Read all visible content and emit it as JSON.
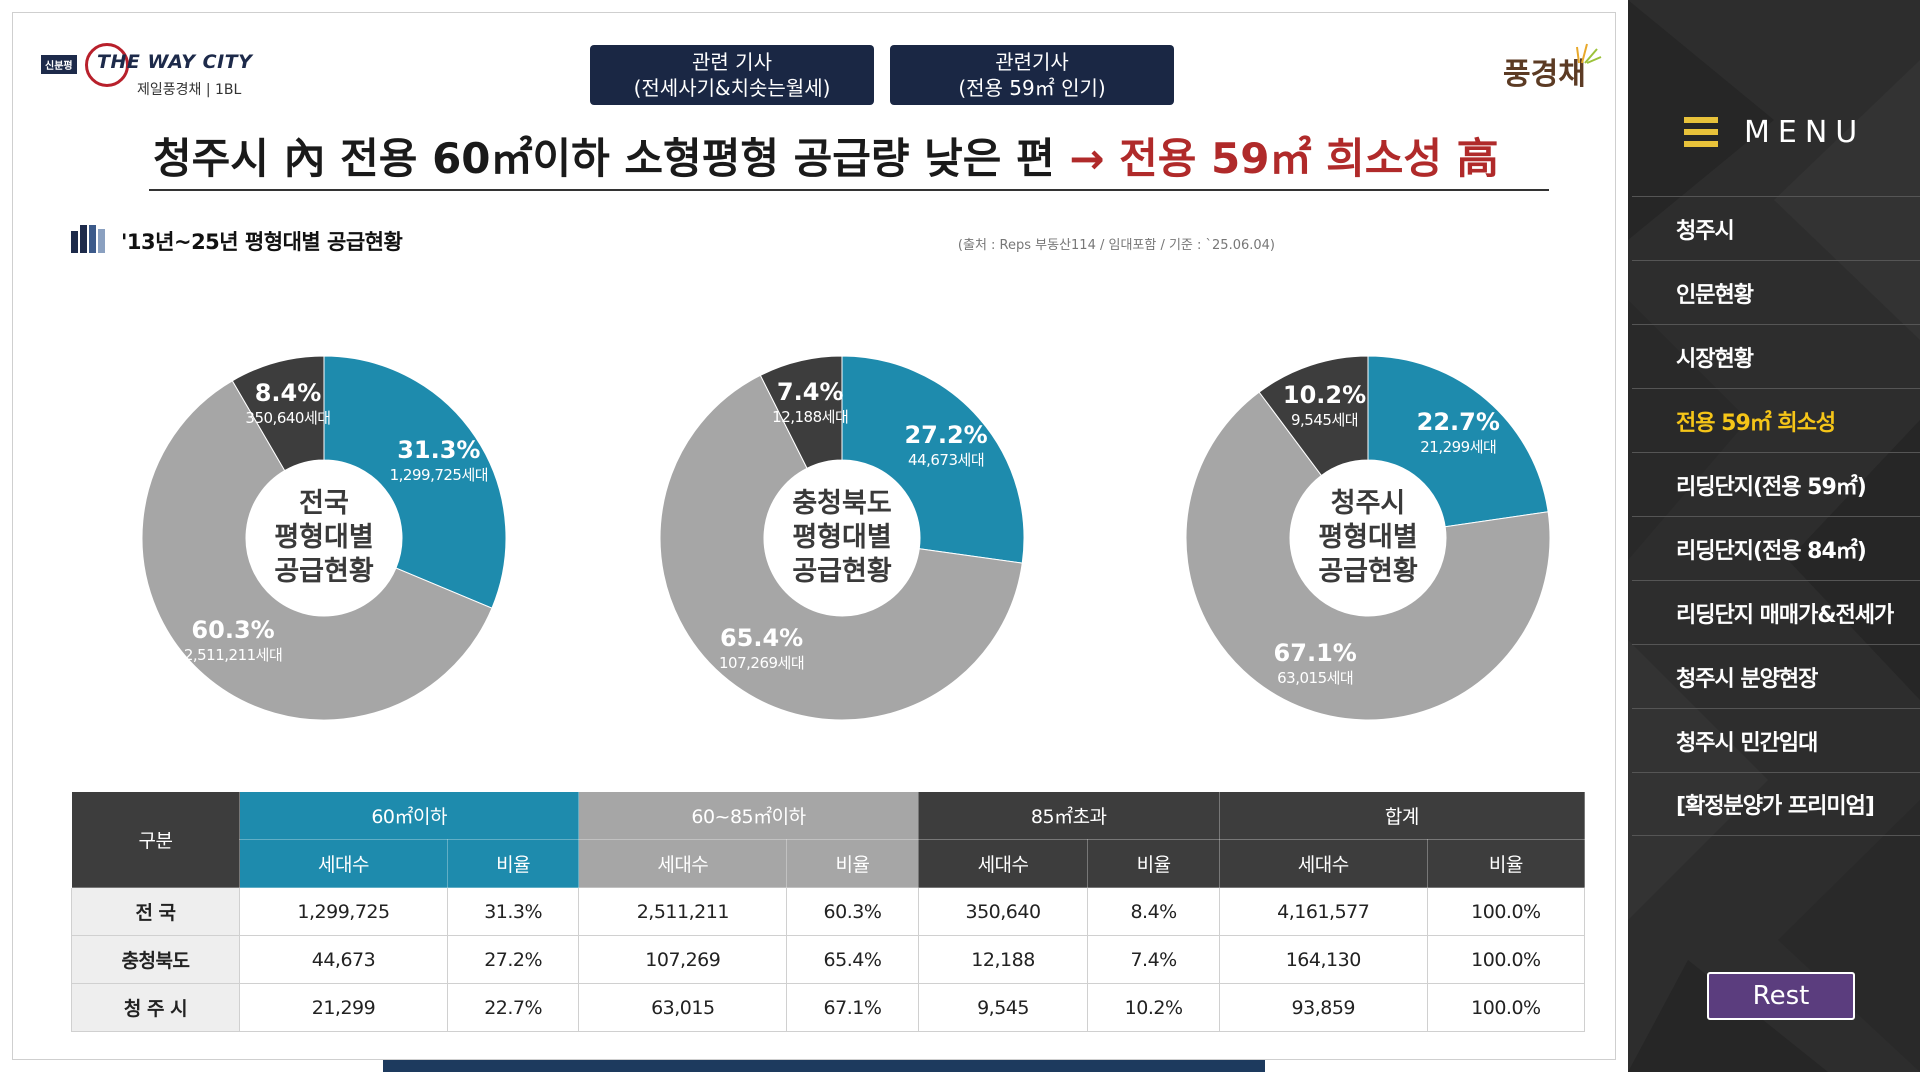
{
  "header": {
    "logo_badge": "신분평",
    "logo_text": "THE WAY CITY",
    "logo_sub": "제일풍경채 | 1BL",
    "brand": "풍경채",
    "buttons": [
      {
        "line1": "관련 기사",
        "line2": "(전세사기&치솟는월세)"
      },
      {
        "line1": "관련기사",
        "line2": "(전용 59㎡ 인기)"
      }
    ]
  },
  "headline": {
    "part1": "청주시 內 전용 60㎡이하 소형평형 공급량 낮은 편",
    "arrow": "→",
    "part2": "전용 59㎡ 희소성 高"
  },
  "section": {
    "title": "'13년~25년 평형대별 공급현황",
    "source": "(출처 : Reps 부동산114 / 임대포함 / 기준 : `25.06.04)"
  },
  "colors": {
    "blue": "#1e8bad",
    "gray": "#a6a6a6",
    "dark": "#3d3d3d",
    "accent_red": "#b02a2a",
    "menu_active": "#f5c518",
    "rest": "#5b3d7e"
  },
  "chart_data": [
    {
      "type": "pie",
      "title_lines": [
        "전국",
        "평형대별",
        "공급현황"
      ],
      "series": [
        {
          "name": "60㎡이하",
          "value": 31.3,
          "label": "31.3%",
          "count": "1,299,725세대",
          "color": "#1e8bad"
        },
        {
          "name": "60~85㎡이하",
          "value": 60.3,
          "label": "60.3%",
          "count": "2,511,211세대",
          "color": "#a6a6a6"
        },
        {
          "name": "85㎡초과",
          "value": 8.4,
          "label": "8.4%",
          "count": "350,640세대",
          "color": "#3d3d3d"
        }
      ]
    },
    {
      "type": "pie",
      "title_lines": [
        "충청북도",
        "평형대별",
        "공급현황"
      ],
      "series": [
        {
          "name": "60㎡이하",
          "value": 27.2,
          "label": "27.2%",
          "count": "44,673세대",
          "color": "#1e8bad"
        },
        {
          "name": "60~85㎡이하",
          "value": 65.4,
          "label": "65.4%",
          "count": "107,269세대",
          "color": "#a6a6a6"
        },
        {
          "name": "85㎡초과",
          "value": 7.4,
          "label": "7.4%",
          "count": "12,188세대",
          "color": "#3d3d3d"
        }
      ]
    },
    {
      "type": "pie",
      "title_lines": [
        "청주시",
        "평형대별",
        "공급현황"
      ],
      "series": [
        {
          "name": "60㎡이하",
          "value": 22.7,
          "label": "22.7%",
          "count": "21,299세대",
          "color": "#1e8bad"
        },
        {
          "name": "60~85㎡이하",
          "value": 67.1,
          "label": "67.1%",
          "count": "63,015세대",
          "color": "#a6a6a6"
        },
        {
          "name": "85㎡초과",
          "value": 10.2,
          "label": "10.2%",
          "count": "9,545세대",
          "color": "#3d3d3d"
        }
      ]
    }
  ],
  "table": {
    "gubun": "구분",
    "groups": [
      "60㎡이하",
      "60~85㎡이하",
      "85㎡초과",
      "합계"
    ],
    "sub_households": "세대수",
    "sub_ratio": "비율",
    "rows": [
      {
        "name": "전  국",
        "cells": [
          "1,299,725",
          "31.3%",
          "2,511,211",
          "60.3%",
          "350,640",
          "8.4%",
          "4,161,577",
          "100.0%"
        ]
      },
      {
        "name": "충청북도",
        "cells": [
          "44,673",
          "27.2%",
          "107,269",
          "65.4%",
          "12,188",
          "7.4%",
          "164,130",
          "100.0%"
        ]
      },
      {
        "name": "청 주 시",
        "cells": [
          "21,299",
          "22.7%",
          "63,015",
          "67.1%",
          "9,545",
          "10.2%",
          "93,859",
          "100.0%"
        ]
      }
    ]
  },
  "sidebar": {
    "title": "MENU",
    "items": [
      {
        "label": "청주시",
        "active": false
      },
      {
        "label": "인문현황",
        "active": false
      },
      {
        "label": "시장현황",
        "active": false
      },
      {
        "label": "전용 59㎡ 희소성",
        "active": true
      },
      {
        "label": "리딩단지(전용 59㎡)",
        "active": false
      },
      {
        "label": "리딩단지(전용 84㎡)",
        "active": false
      },
      {
        "label": "리딩단지 매매가&전세가",
        "active": false
      },
      {
        "label": "청주시 분양현장",
        "active": false
      },
      {
        "label": "청주시 민간임대",
        "active": false
      },
      {
        "label": "[확정분양가 프리미엄]",
        "active": false
      }
    ],
    "rest_label": "Rest"
  }
}
